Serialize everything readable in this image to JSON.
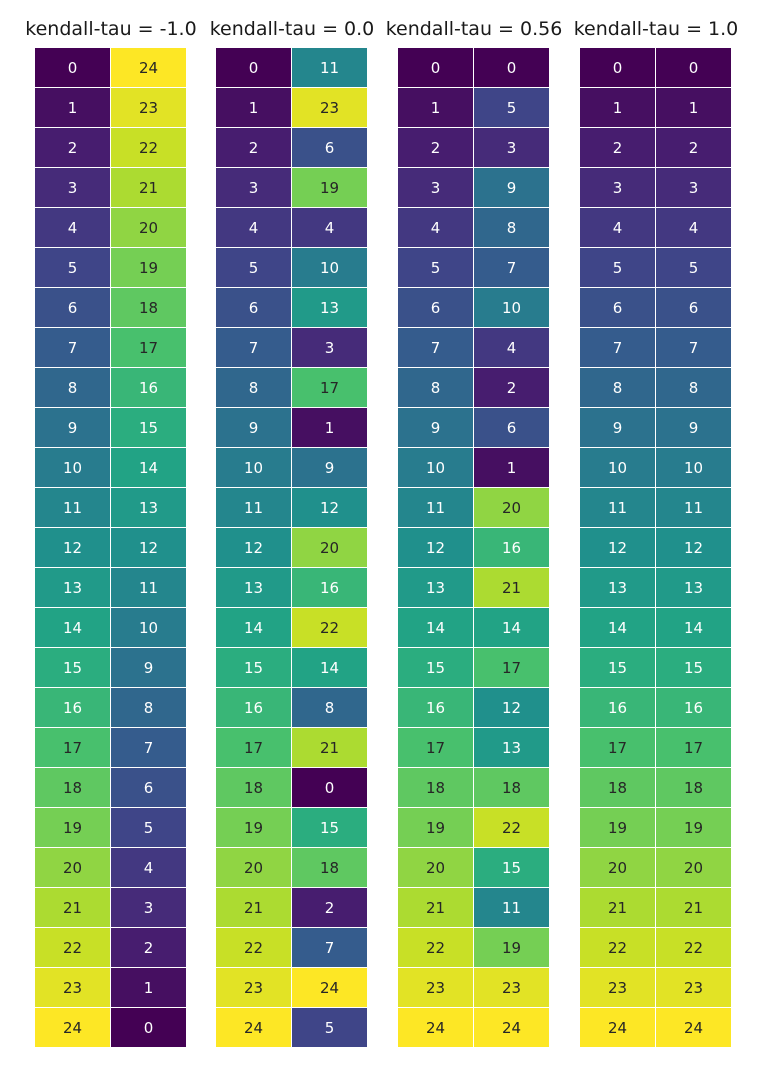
{
  "chart_data": [
    {
      "type": "heatmap",
      "title": "kendall-tau = -1.0",
      "columns": [
        [
          0,
          1,
          2,
          3,
          4,
          5,
          6,
          7,
          8,
          9,
          10,
          11,
          12,
          13,
          14,
          15,
          16,
          17,
          18,
          19,
          20,
          21,
          22,
          23,
          24
        ],
        [
          24,
          23,
          22,
          21,
          20,
          19,
          18,
          17,
          16,
          15,
          14,
          13,
          12,
          11,
          10,
          9,
          8,
          7,
          6,
          5,
          4,
          3,
          2,
          1,
          0
        ]
      ]
    },
    {
      "type": "heatmap",
      "title": "kendall-tau = 0.0",
      "columns": [
        [
          0,
          1,
          2,
          3,
          4,
          5,
          6,
          7,
          8,
          9,
          10,
          11,
          12,
          13,
          14,
          15,
          16,
          17,
          18,
          19,
          20,
          21,
          22,
          23,
          24
        ],
        [
          11,
          23,
          6,
          19,
          4,
          10,
          13,
          3,
          17,
          1,
          9,
          12,
          20,
          16,
          22,
          14,
          8,
          21,
          0,
          15,
          18,
          2,
          7,
          24,
          5
        ]
      ]
    },
    {
      "type": "heatmap",
      "title": "kendall-tau = 0.56",
      "columns": [
        [
          0,
          1,
          2,
          3,
          4,
          5,
          6,
          7,
          8,
          9,
          10,
          11,
          12,
          13,
          14,
          15,
          16,
          17,
          18,
          19,
          20,
          21,
          22,
          23,
          24
        ],
        [
          0,
          5,
          3,
          9,
          8,
          7,
          10,
          4,
          2,
          6,
          1,
          20,
          16,
          21,
          14,
          17,
          12,
          13,
          18,
          22,
          15,
          11,
          19,
          23,
          24
        ]
      ]
    },
    {
      "type": "heatmap",
      "title": "kendall-tau = 1.0",
      "columns": [
        [
          0,
          1,
          2,
          3,
          4,
          5,
          6,
          7,
          8,
          9,
          10,
          11,
          12,
          13,
          14,
          15,
          16,
          17,
          18,
          19,
          20,
          21,
          22,
          23,
          24
        ],
        [
          0,
          1,
          2,
          3,
          4,
          5,
          6,
          7,
          8,
          9,
          10,
          11,
          12,
          13,
          14,
          15,
          16,
          17,
          18,
          19,
          20,
          21,
          22,
          23,
          24
        ]
      ]
    }
  ],
  "colormap": "viridis",
  "value_range": [
    0,
    24
  ]
}
